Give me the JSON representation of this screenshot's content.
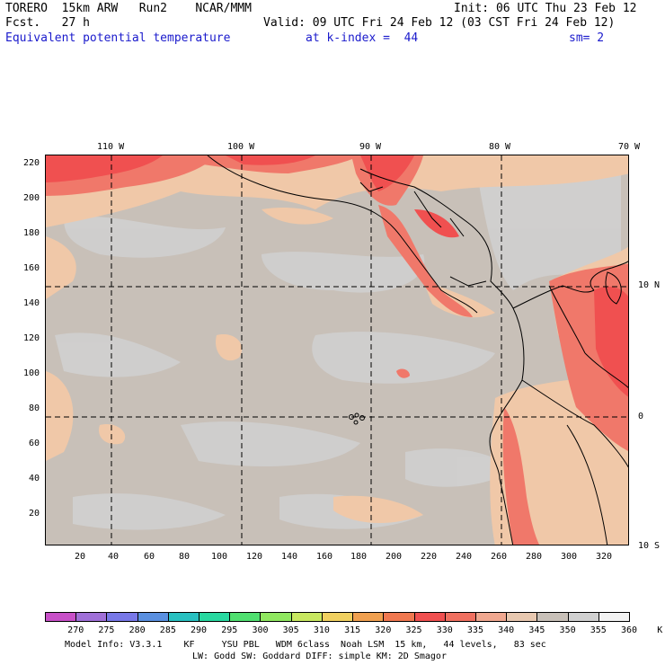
{
  "header": {
    "line1_left": "TORERO  15km ARW   Run2    NCAR/MMM",
    "line1_right": "Init: 06 UTC Thu 23 Feb 12",
    "line2_left": "Fcst.   27 h",
    "line2_right": "Valid: 09 UTC Fri 24 Feb 12 (03 CST Fri 24 Feb 12)",
    "line3_field": "Equivalent potential temperature",
    "line3_level": "at k-index =  44",
    "line3_sm": "sm= 2"
  },
  "map": {
    "top_lon_labels": [
      "110 W",
      "100 W",
      "90 W",
      "80 W",
      "70 W"
    ],
    "right_lat_labels": [
      "10 N",
      "0",
      "10 S"
    ],
    "left_axis": [
      "220",
      "200",
      "180",
      "160",
      "140",
      "120",
      "100",
      "80",
      "60",
      "40",
      "20"
    ],
    "bottom_axis": [
      "20",
      "40",
      "60",
      "80",
      "100",
      "120",
      "140",
      "160",
      "180",
      "200",
      "220",
      "240",
      "260",
      "280",
      "300",
      "320"
    ]
  },
  "colorbar": {
    "labels": [
      "270",
      "275",
      "280",
      "285",
      "290",
      "295",
      "300",
      "305",
      "310",
      "315",
      "320",
      "325",
      "330",
      "335",
      "340",
      "345",
      "350",
      "355",
      "360",
      "K"
    ],
    "colors": [
      "#c850c8",
      "#a070d8",
      "#7878e8",
      "#5a90e0",
      "#28c0c0",
      "#28d8a0",
      "#50e070",
      "#90e860",
      "#c8e860",
      "#f0d060",
      "#f0a050",
      "#f07850",
      "#f05050",
      "#f07060",
      "#f0a890",
      "#e8c8b0",
      "#c8c0b8",
      "#d0d0d0",
      "#f2f2f2"
    ]
  },
  "footer": {
    "line1": "Model Info: V3.3.1    KF     YSU PBL   WDM 6class  Noah LSM  15 km,   44 levels,   83 sec",
    "line2": "LW: Godd SW: Goddard DIFF: simple KM: 2D Smagor"
  }
}
